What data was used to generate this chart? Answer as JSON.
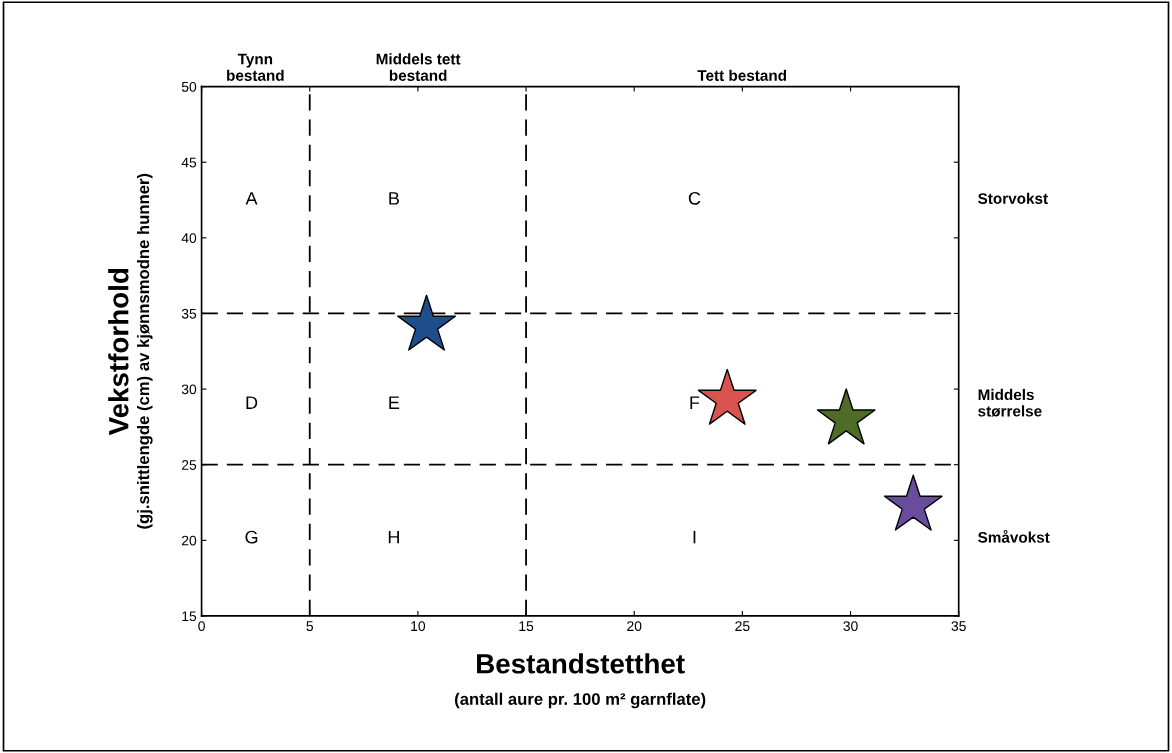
{
  "chart_data": {
    "type": "scatter",
    "xlabel": "Bestandstetthet",
    "ylabel": "Vekstforhold",
    "x": [
      10.4,
      24.3,
      29.8,
      32.9
    ],
    "series": [
      {
        "colors": [
          "#1f4e8c",
          "#d9534f",
          "#4f6b28",
          "#6a4c9c"
        ],
        "values": [
          34.2,
          29.3,
          28.0,
          22.3
        ]
      }
    ],
    "marker": "star",
    "xlim": [
      0,
      35
    ],
    "xticks": [
      0,
      5,
      10,
      15,
      20,
      25,
      30,
      35
    ],
    "ylim": [
      15,
      50
    ],
    "yticks": [
      15,
      20,
      25,
      30,
      35,
      40,
      45,
      50
    ],
    "grid": false,
    "ref_lines": [
      {
        "axis": "x",
        "value": 5,
        "line_style": "dashed",
        "color": "#000000"
      },
      {
        "axis": "x",
        "value": 15,
        "line_style": "dashed",
        "color": "#000000"
      },
      {
        "axis": "y",
        "value": 35,
        "line_style": "dashed",
        "color": "#000000"
      },
      {
        "axis": "y",
        "value": 25,
        "line_style": "dashed",
        "color": "#000000"
      }
    ],
    "annotations": [
      "(antall aure pr. 100 m² garnflate)",
      "(gj.snittlengde (cm) av kjønnsmodne hunner)",
      "Tynn\nbestand",
      "Middels tett\nbestand",
      "Tett bestand",
      "Storvokst",
      "Middels\nstørrelse",
      "Småvokst",
      "A",
      "B",
      "C",
      "D",
      "E",
      "F",
      "G",
      "H",
      "I"
    ]
  }
}
